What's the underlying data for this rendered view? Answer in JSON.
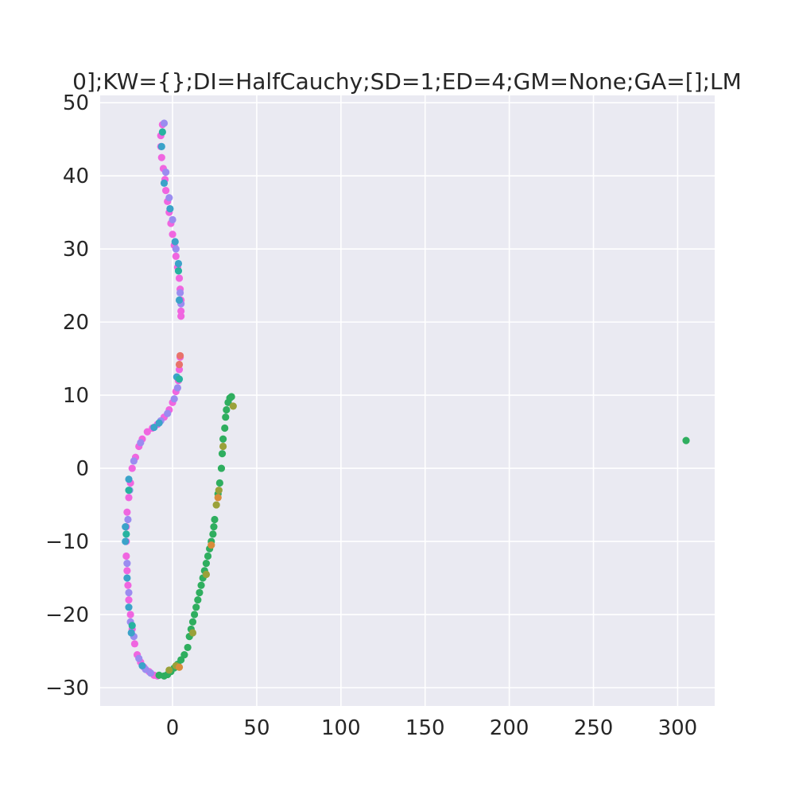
{
  "chart_data": {
    "type": "scatter",
    "title": "0];KW={};DI=HalfCauchy;SD=1;ED=4;GM=None;GA=[];LM",
    "xlabel": "",
    "ylabel": "",
    "xlim": [
      -43,
      322
    ],
    "ylim": [
      -32.5,
      51
    ],
    "xticks": [
      0,
      50,
      100,
      150,
      200,
      250,
      300
    ],
    "yticks": [
      -30,
      -20,
      -10,
      0,
      10,
      20,
      30,
      40,
      50
    ],
    "grid": true,
    "background": "#eaeaf2",
    "series": [
      {
        "color": "#f066e0",
        "points": [
          [
            -6,
            47
          ],
          [
            -7,
            45.5
          ],
          [
            -7,
            44
          ],
          [
            -6.5,
            42.5
          ],
          [
            -5.5,
            41
          ],
          [
            -4.5,
            39.5
          ],
          [
            -4,
            38
          ],
          [
            -3,
            36.5
          ],
          [
            -2,
            35
          ],
          [
            -1,
            33.5
          ],
          [
            0,
            32
          ],
          [
            1,
            30.5
          ],
          [
            2,
            29
          ],
          [
            3,
            27.5
          ],
          [
            4,
            26
          ],
          [
            4.5,
            24.5
          ],
          [
            5,
            23
          ],
          [
            5,
            21.5
          ],
          [
            5,
            20.8
          ],
          [
            4.5,
            15.2
          ],
          [
            4,
            13.5
          ],
          [
            3.5,
            12
          ],
          [
            2,
            10.5
          ],
          [
            0,
            9
          ],
          [
            -2,
            8
          ],
          [
            -5,
            7
          ],
          [
            -9,
            6
          ],
          [
            -12,
            5.5
          ],
          [
            -15,
            5
          ],
          [
            -18,
            4
          ],
          [
            -20,
            3
          ],
          [
            -22,
            1.5
          ],
          [
            -24,
            0
          ],
          [
            -25,
            -2
          ],
          [
            -26,
            -4
          ],
          [
            -27,
            -6
          ],
          [
            -27.5,
            -8
          ],
          [
            -27.5,
            -10
          ],
          [
            -27.5,
            -12
          ],
          [
            -27,
            -14
          ],
          [
            -26.5,
            -16
          ],
          [
            -26,
            -18
          ],
          [
            -25,
            -20
          ],
          [
            -24,
            -22
          ],
          [
            -22.5,
            -24
          ],
          [
            -21,
            -25.5
          ],
          [
            -19,
            -26.5
          ],
          [
            -17,
            -27.2
          ],
          [
            -14,
            -27.8
          ],
          [
            -11,
            -28.3
          ],
          [
            -9,
            -28.4
          ]
        ]
      },
      {
        "color": "#9b8cf0",
        "points": [
          [
            -5,
            47.2
          ],
          [
            -4,
            40.5
          ],
          [
            -2,
            37
          ],
          [
            0,
            34
          ],
          [
            2,
            30
          ],
          [
            4.5,
            24
          ],
          [
            5,
            22.5
          ],
          [
            3,
            11
          ],
          [
            1,
            9.5
          ],
          [
            -3,
            7.5
          ],
          [
            -7,
            6.5
          ],
          [
            -19,
            3.5
          ],
          [
            -23,
            1
          ],
          [
            -25.5,
            -3
          ],
          [
            -26.5,
            -7
          ],
          [
            -27,
            -13
          ],
          [
            -26,
            -17
          ],
          [
            -25,
            -21
          ],
          [
            -23,
            -23
          ],
          [
            -20,
            -26
          ],
          [
            -16,
            -27.5
          ],
          [
            -13,
            -28
          ]
        ]
      },
      {
        "color": "#3ba3c9",
        "points": [
          [
            -6.5,
            44
          ],
          [
            -5,
            39
          ],
          [
            -1.5,
            35.5
          ],
          [
            1.5,
            31
          ],
          [
            3.5,
            28
          ],
          [
            4,
            23
          ],
          [
            2.5,
            12.5
          ],
          [
            -8,
            6.2
          ],
          [
            -11,
            5.6
          ],
          [
            -26,
            -1.5
          ],
          [
            -28,
            -8
          ],
          [
            -28,
            -10
          ],
          [
            -27,
            -15
          ],
          [
            -26,
            -19
          ],
          [
            -24.5,
            -22.5
          ],
          [
            -18,
            -27
          ]
        ]
      },
      {
        "color": "#2fae5f",
        "points": [
          [
            -8,
            -28.3
          ],
          [
            -5,
            -28.4
          ],
          [
            -3,
            -28.2
          ],
          [
            -1,
            -27.8
          ],
          [
            1,
            -27.3
          ],
          [
            3,
            -26.8
          ],
          [
            5,
            -26.2
          ],
          [
            7,
            -25.5
          ],
          [
            9,
            -24.5
          ],
          [
            10,
            -23
          ],
          [
            11,
            -22
          ],
          [
            12,
            -21
          ],
          [
            13,
            -20
          ],
          [
            14,
            -19
          ],
          [
            15,
            -18
          ],
          [
            16,
            -17
          ],
          [
            17,
            -16
          ],
          [
            18,
            -15
          ],
          [
            19,
            -14
          ],
          [
            20,
            -13
          ],
          [
            21,
            -12
          ],
          [
            22,
            -11
          ],
          [
            23,
            -10
          ],
          [
            24,
            -9
          ],
          [
            24.5,
            -8
          ],
          [
            25,
            -7
          ],
          [
            27,
            -3.5
          ],
          [
            28,
            -2
          ],
          [
            29,
            0
          ],
          [
            29.5,
            2
          ],
          [
            30,
            4
          ],
          [
            31,
            5.5
          ],
          [
            31.5,
            7
          ],
          [
            32,
            8
          ],
          [
            33,
            9
          ],
          [
            34,
            9.6
          ],
          [
            35,
            9.8
          ],
          [
            305,
            3.8
          ]
        ]
      },
      {
        "color": "#9aa13a",
        "points": [
          [
            -2,
            -27.6
          ],
          [
            2,
            -27
          ],
          [
            12,
            -22.5
          ],
          [
            20,
            -14.5
          ],
          [
            26,
            -5
          ],
          [
            27.5,
            -3
          ],
          [
            30,
            3
          ],
          [
            36,
            8.5
          ]
        ]
      },
      {
        "color": "#d98c3a",
        "points": [
          [
            4,
            -27.2
          ],
          [
            23,
            -10.5
          ],
          [
            27,
            -4
          ]
        ]
      },
      {
        "color": "#e8736b",
        "points": [
          [
            4.5,
            15.4
          ],
          [
            4,
            14.2
          ]
        ]
      },
      {
        "color": "#27b3a0",
        "points": [
          [
            -6,
            46
          ],
          [
            3.5,
            27
          ],
          [
            4,
            12.2
          ],
          [
            -26,
            -3
          ],
          [
            -27.5,
            -9
          ],
          [
            -24,
            -21.5
          ]
        ]
      }
    ]
  }
}
